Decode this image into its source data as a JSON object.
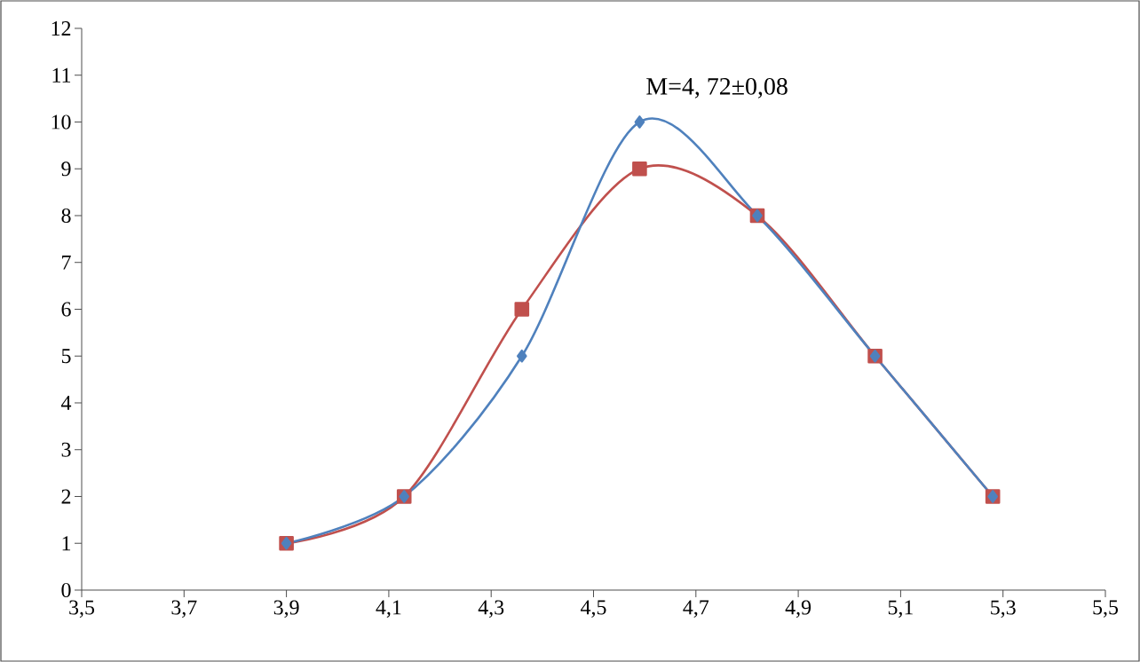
{
  "chart_data": {
    "type": "line",
    "annotations": [
      "M=4, 72±0,08"
    ],
    "x": [
      3.9,
      4.13,
      4.36,
      4.59,
      4.82,
      5.05,
      5.28
    ],
    "series": [
      {
        "color": "#c0504d",
        "marker": "square",
        "values": [
          1,
          2,
          6,
          9,
          8,
          5,
          2
        ]
      },
      {
        "color": "#4f81bd",
        "marker": "diamond",
        "values": [
          1,
          2,
          5,
          10,
          8,
          5,
          2
        ]
      }
    ],
    "xlim": [
      3.5,
      5.5
    ],
    "xticks": [
      {
        "value": 3.5,
        "label": "3,5"
      },
      {
        "value": 3.7,
        "label": "3,7"
      },
      {
        "value": 3.9,
        "label": "3,9"
      },
      {
        "value": 4.1,
        "label": "4,1"
      },
      {
        "value": 4.3,
        "label": "4,3"
      },
      {
        "value": 4.5,
        "label": "4,5"
      },
      {
        "value": 4.7,
        "label": "4,7"
      },
      {
        "value": 4.9,
        "label": "4,9"
      },
      {
        "value": 5.1,
        "label": "5,1"
      },
      {
        "value": 5.3,
        "label": "5,3"
      },
      {
        "value": 5.5,
        "label": "5,5"
      }
    ],
    "ylim": [
      0,
      12
    ],
    "yticks": [
      0,
      1,
      2,
      3,
      4,
      5,
      6,
      7,
      8,
      9,
      10,
      11,
      12
    ],
    "grid": false
  }
}
